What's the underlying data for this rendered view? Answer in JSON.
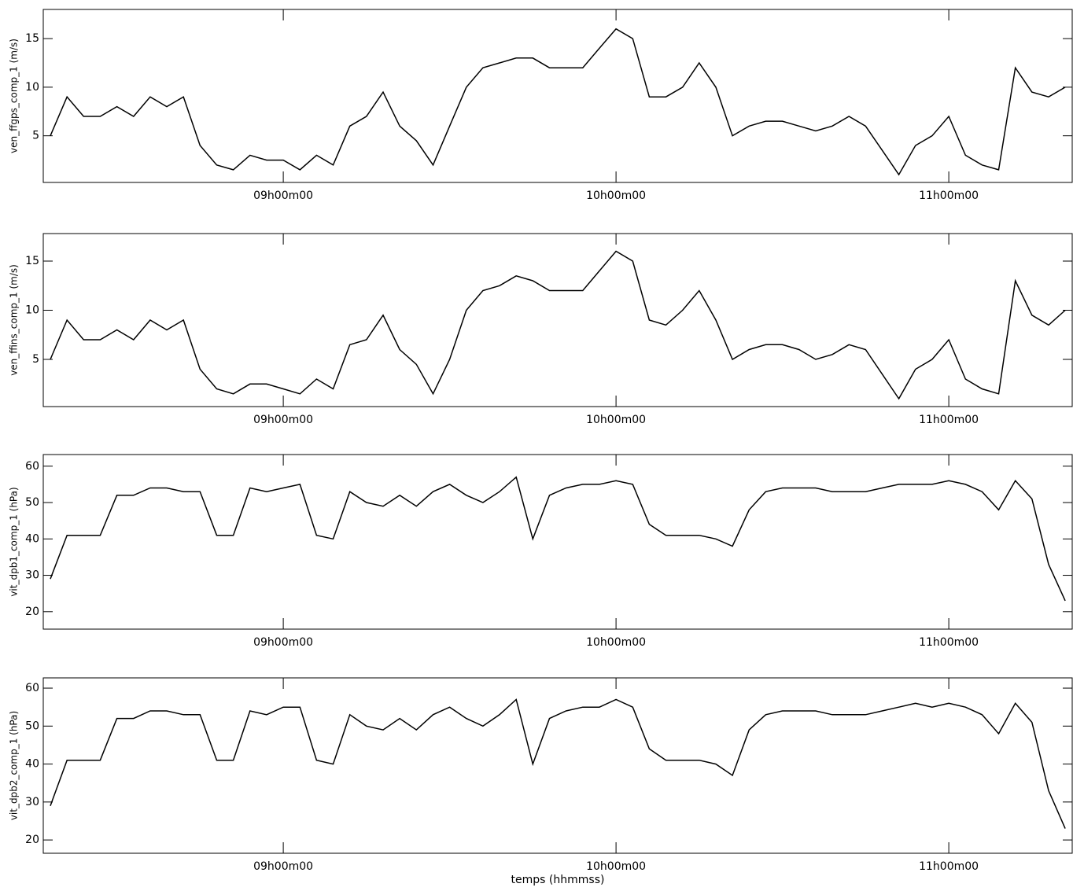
{
  "chart_data": [
    {
      "type": "line",
      "y_label": "ven_ffgps_comp_1 (m/s)",
      "x": [
        "08h18m00",
        "08h21m00",
        "08h24m00",
        "08h27m00",
        "08h30m00",
        "08h33m00",
        "08h36m00",
        "08h39m00",
        "08h42m00",
        "08h45m00",
        "08h48m00",
        "08h51m00",
        "08h54m00",
        "08h57m00",
        "09h00m00",
        "09h03m00",
        "09h06m00",
        "09h09m00",
        "09h12m00",
        "09h15m00",
        "09h18m00",
        "09h21m00",
        "09h24m00",
        "09h27m00",
        "09h30m00",
        "09h33m00",
        "09h36m00",
        "09h39m00",
        "09h42m00",
        "09h45m00",
        "09h48m00",
        "09h51m00",
        "09h54m00",
        "09h57m00",
        "10h00m00",
        "10h03m00",
        "10h06m00",
        "10h09m00",
        "10h12m00",
        "10h15m00",
        "10h18m00",
        "10h21m00",
        "10h24m00",
        "10h27m00",
        "10h30m00",
        "10h33m00",
        "10h36m00",
        "10h39m00",
        "10h42m00",
        "10h45m00",
        "10h48m00",
        "10h51m00",
        "10h54m00",
        "10h57m00",
        "11h00m00",
        "11h03m00",
        "11h06m00",
        "11h09m00",
        "11h12m00",
        "11h15m00",
        "11h18m00",
        "11h21m00"
      ],
      "series": [
        {
          "color": "#000000",
          "values": [
            5,
            9,
            7,
            7,
            8,
            7,
            9,
            8,
            9,
            4,
            2,
            1.5,
            3,
            2.5,
            2.5,
            1.5,
            3,
            2,
            6,
            7,
            9.5,
            6,
            4.5,
            2,
            6,
            10,
            12,
            12.5,
            13,
            13,
            12,
            12,
            12,
            14,
            16,
            15,
            9,
            9,
            10,
            12.5,
            10,
            5,
            6,
            6.5,
            6.5,
            6,
            5.5,
            6,
            7,
            6,
            3.5,
            1,
            4,
            5,
            7,
            3,
            2,
            1.5,
            12,
            9.5,
            9,
            10
          ]
        }
      ],
      "ylim": [
        0.2,
        18
      ],
      "yticks": [
        5,
        10,
        15
      ],
      "xticks": [
        "09h00m00",
        "10h00m00",
        "11h00m00"
      ]
    },
    {
      "type": "line",
      "y_label": "ven_ffins_comp_1 (m/s)",
      "x": [
        "08h18m00",
        "08h21m00",
        "08h24m00",
        "08h27m00",
        "08h30m00",
        "08h33m00",
        "08h36m00",
        "08h39m00",
        "08h42m00",
        "08h45m00",
        "08h48m00",
        "08h51m00",
        "08h54m00",
        "08h57m00",
        "09h00m00",
        "09h03m00",
        "09h06m00",
        "09h09m00",
        "09h12m00",
        "09h15m00",
        "09h18m00",
        "09h21m00",
        "09h24m00",
        "09h27m00",
        "09h30m00",
        "09h33m00",
        "09h36m00",
        "09h39m00",
        "09h42m00",
        "09h45m00",
        "09h48m00",
        "09h51m00",
        "09h54m00",
        "09h57m00",
        "10h00m00",
        "10h03m00",
        "10h06m00",
        "10h09m00",
        "10h12m00",
        "10h15m00",
        "10h18m00",
        "10h21m00",
        "10h24m00",
        "10h27m00",
        "10h30m00",
        "10h33m00",
        "10h36m00",
        "10h39m00",
        "10h42m00",
        "10h45m00",
        "10h48m00",
        "10h51m00",
        "10h54m00",
        "10h57m00",
        "11h00m00",
        "11h03m00",
        "11h06m00",
        "11h09m00",
        "11h12m00",
        "11h15m00",
        "11h18m00",
        "11h21m00"
      ],
      "series": [
        {
          "color": "#000000",
          "values": [
            5,
            9,
            7,
            7,
            8,
            7,
            9,
            8,
            9,
            4,
            2,
            1.5,
            2.5,
            2.5,
            2,
            1.5,
            3,
            2,
            6.5,
            7,
            9.5,
            6,
            4.5,
            1.5,
            5,
            10,
            12,
            12.5,
            13.5,
            13,
            12,
            12,
            12,
            14,
            16,
            15,
            9,
            8.5,
            10,
            12,
            9,
            5,
            6,
            6.5,
            6.5,
            6,
            5,
            5.5,
            6.5,
            6,
            3.5,
            1,
            4,
            5,
            7,
            3,
            2,
            1.5,
            13,
            9.5,
            8.5,
            10
          ]
        }
      ],
      "ylim": [
        0.2,
        17.8
      ],
      "yticks": [
        5,
        10,
        15
      ],
      "xticks": [
        "09h00m00",
        "10h00m00",
        "11h00m00"
      ]
    },
    {
      "type": "line",
      "y_label": "vit_dpb1_comp_1 (hPa)",
      "x": [
        "08h18m00",
        "08h21m00",
        "08h24m00",
        "08h27m00",
        "08h30m00",
        "08h33m00",
        "08h36m00",
        "08h39m00",
        "08h42m00",
        "08h45m00",
        "08h48m00",
        "08h51m00",
        "08h54m00",
        "08h57m00",
        "09h00m00",
        "09h03m00",
        "09h06m00",
        "09h09m00",
        "09h12m00",
        "09h15m00",
        "09h18m00",
        "09h21m00",
        "09h24m00",
        "09h27m00",
        "09h30m00",
        "09h33m00",
        "09h36m00",
        "09h39m00",
        "09h42m00",
        "09h45m00",
        "09h48m00",
        "09h51m00",
        "09h54m00",
        "09h57m00",
        "10h00m00",
        "10h03m00",
        "10h06m00",
        "10h09m00",
        "10h12m00",
        "10h15m00",
        "10h18m00",
        "10h21m00",
        "10h24m00",
        "10h27m00",
        "10h30m00",
        "10h33m00",
        "10h36m00",
        "10h39m00",
        "10h42m00",
        "10h45m00",
        "10h48m00",
        "10h51m00",
        "10h54m00",
        "10h57m00",
        "11h00m00",
        "11h03m00",
        "11h06m00",
        "11h09m00",
        "11h12m00",
        "11h15m00",
        "11h18m00",
        "11h21m00"
      ],
      "series": [
        {
          "color": "#000000",
          "values": [
            29,
            41,
            41,
            41,
            52,
            52,
            54,
            54,
            53,
            53,
            41,
            41,
            54,
            53,
            54,
            55,
            41,
            40,
            53,
            50,
            49,
            52,
            49,
            53,
            55,
            52,
            50,
            53,
            57,
            40,
            52,
            54,
            55,
            55,
            56,
            55,
            44,
            41,
            41,
            41,
            40,
            38,
            48,
            53,
            54,
            54,
            54,
            53,
            53,
            53,
            54,
            55,
            55,
            55,
            56,
            55,
            53,
            48,
            56,
            51,
            33,
            23
          ]
        }
      ],
      "ylim": [
        15.2,
        63.2
      ],
      "yticks": [
        20,
        30,
        40,
        50,
        60
      ],
      "xticks": [
        "09h00m00",
        "10h00m00",
        "11h00m00"
      ]
    },
    {
      "type": "line",
      "y_label": "vit_dpb2_comp_1 (hPa)",
      "x_label": "temps (hhmmss)",
      "x": [
        "08h18m00",
        "08h21m00",
        "08h24m00",
        "08h27m00",
        "08h30m00",
        "08h33m00",
        "08h36m00",
        "08h39m00",
        "08h42m00",
        "08h45m00",
        "08h48m00",
        "08h51m00",
        "08h54m00",
        "08h57m00",
        "09h00m00",
        "09h03m00",
        "09h06m00",
        "09h09m00",
        "09h12m00",
        "09h15m00",
        "09h18m00",
        "09h21m00",
        "09h24m00",
        "09h27m00",
        "09h30m00",
        "09h33m00",
        "09h36m00",
        "09h39m00",
        "09h42m00",
        "09h45m00",
        "09h48m00",
        "09h51m00",
        "09h54m00",
        "09h57m00",
        "10h00m00",
        "10h03m00",
        "10h06m00",
        "10h09m00",
        "10h12m00",
        "10h15m00",
        "10h18m00",
        "10h21m00",
        "10h24m00",
        "10h27m00",
        "10h30m00",
        "10h33m00",
        "10h36m00",
        "10h39m00",
        "10h42m00",
        "10h45m00",
        "10h48m00",
        "10h51m00",
        "10h54m00",
        "10h57m00",
        "11h00m00",
        "11h03m00",
        "11h06m00",
        "11h09m00",
        "11h12m00",
        "11h15m00",
        "11h18m00",
        "11h21m00"
      ],
      "series": [
        {
          "color": "#000000",
          "values": [
            29,
            41,
            41,
            41,
            52,
            52,
            54,
            54,
            53,
            53,
            41,
            41,
            54,
            53,
            55,
            55,
            41,
            40,
            53,
            50,
            49,
            52,
            49,
            53,
            55,
            52,
            50,
            53,
            57,
            40,
            52,
            54,
            55,
            55,
            57,
            55,
            44,
            41,
            41,
            41,
            40,
            37,
            49,
            53,
            54,
            54,
            54,
            53,
            53,
            53,
            54,
            55,
            56,
            55,
            56,
            55,
            53,
            48,
            56,
            51,
            33,
            23
          ]
        }
      ],
      "ylim": [
        16.5,
        62.7
      ],
      "yticks": [
        20,
        30,
        40,
        50,
        60
      ],
      "xticks": [
        "09h00m00",
        "10h00m00",
        "11h00m00"
      ]
    }
  ]
}
